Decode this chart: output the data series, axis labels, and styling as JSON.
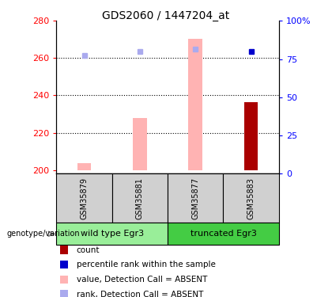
{
  "title": "GDS2060 / 1447204_at",
  "samples": [
    "GSM35879",
    "GSM35881",
    "GSM35877",
    "GSM35883"
  ],
  "ylim_left": [
    198,
    280
  ],
  "ylim_right": [
    0,
    100
  ],
  "yticks_left": [
    200,
    220,
    240,
    260,
    280
  ],
  "ytick_labels_right": [
    "0",
    "25",
    "50",
    "75",
    "100%"
  ],
  "yticks_right": [
    0,
    25,
    50,
    75,
    100
  ],
  "pink_bar_values": [
    203.5,
    228.0,
    270.5,
    null
  ],
  "dark_red_bar_values": [
    null,
    null,
    null,
    236.5
  ],
  "blue_dot_values": [
    null,
    null,
    null,
    263.5
  ],
  "light_blue_dot_values": [
    261.5,
    263.5,
    265.0,
    null
  ],
  "bar_bottom": 200,
  "bar_width": 0.25,
  "pink_color": "#ffb3b3",
  "dark_red_color": "#aa0000",
  "blue_color": "#0000cc",
  "light_blue_color": "#aaaaee",
  "sample_box_color": "#d0d0d0",
  "group_configs": [
    {
      "label": "wild type Egr3",
      "start": 0,
      "end": 2,
      "color": "#99ee99"
    },
    {
      "label": "truncated Egr3",
      "start": 2,
      "end": 4,
      "color": "#44cc44"
    }
  ],
  "legend_items": [
    "count",
    "percentile rank within the sample",
    "value, Detection Call = ABSENT",
    "rank, Detection Call = ABSENT"
  ],
  "legend_colors": [
    "#aa0000",
    "#0000cc",
    "#ffb3b3",
    "#aaaaee"
  ],
  "arrow_label": "genotype/variation",
  "title_fontsize": 10,
  "axis_fontsize": 8,
  "legend_fontsize": 7.5,
  "sample_fontsize": 7
}
